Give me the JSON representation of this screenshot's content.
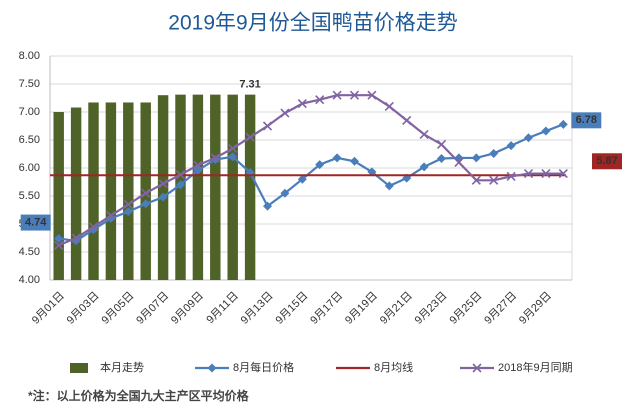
{
  "chart_data": {
    "type": "combo",
    "title": "2019年9月份全国鸭苗价格走势",
    "footnote": "*注：以上价格为全国九大主产区平均价格",
    "categories": [
      "9月01日",
      null,
      "9月03日",
      null,
      "9月05日",
      null,
      "9月07日",
      null,
      "9月09日",
      null,
      "9月11日",
      null,
      "9月13日",
      null,
      "9月15日",
      null,
      "9月17日",
      null,
      "9月19日",
      null,
      "9月21日",
      null,
      "9月23日",
      null,
      "9月25日",
      null,
      "9月27日",
      null,
      "9月29日",
      null
    ],
    "ylim": [
      4,
      8
    ],
    "yticks": [
      {
        "value": 4,
        "label": "4.00"
      },
      {
        "value": 4.5,
        "label": "4.50"
      },
      {
        "value": 5,
        "label": "5.00"
      },
      {
        "value": 5.5,
        "label": "5.50"
      },
      {
        "value": 6,
        "label": "6.00"
      },
      {
        "value": 6.5,
        "label": "6.50"
      },
      {
        "value": 7,
        "label": "7.00"
      },
      {
        "value": 7.5,
        "label": "7.50"
      },
      {
        "value": 8,
        "label": "8.00"
      }
    ],
    "grid": true,
    "legend": "bottom",
    "series": [
      {
        "name": "本月走势",
        "type": "bar",
        "color": "#4f6228",
        "values": [
          7.0,
          7.08,
          7.17,
          7.17,
          7.17,
          7.17,
          7.3,
          7.31,
          7.31,
          7.31,
          7.31,
          7.31,
          null,
          null,
          null,
          null,
          null,
          null,
          null,
          null,
          null,
          null,
          null,
          null,
          null,
          null,
          null,
          null,
          null,
          null
        ],
        "value_labels": [
          null,
          null,
          null,
          null,
          null,
          null,
          null,
          null,
          null,
          null,
          null,
          "7.31",
          null,
          null,
          null,
          null,
          null,
          null,
          null,
          null,
          null,
          null,
          null,
          null,
          null,
          null,
          null,
          null,
          null,
          null
        ]
      },
      {
        "name": "8月每日价格",
        "type": "line",
        "marker": "diamond",
        "color": "#4a7ebb",
        "values": [
          4.74,
          4.7,
          4.9,
          5.1,
          5.22,
          5.36,
          5.48,
          5.7,
          5.96,
          6.15,
          6.2,
          5.92,
          5.32,
          5.55,
          5.8,
          6.06,
          6.18,
          6.12,
          5.93,
          5.68,
          5.82,
          6.02,
          6.17,
          6.18,
          6.18,
          6.26,
          6.4,
          6.54,
          6.66,
          6.78
        ],
        "value_labels": [
          "4.74",
          null,
          null,
          null,
          null,
          null,
          null,
          null,
          null,
          null,
          null,
          null,
          null,
          null,
          null,
          null,
          null,
          null,
          null,
          null,
          null,
          null,
          null,
          null,
          null,
          null,
          null,
          null,
          null,
          "6.78"
        ]
      },
      {
        "name": "8月均线",
        "type": "hline",
        "color": "#a02525",
        "value": 5.87,
        "value_label": "5.87"
      },
      {
        "name": "2018年9月同期",
        "type": "line",
        "marker": "x",
        "color": "#8064a2",
        "values": [
          4.62,
          4.75,
          4.95,
          5.15,
          5.35,
          5.55,
          5.72,
          5.88,
          6.05,
          6.18,
          6.35,
          6.55,
          6.75,
          6.98,
          7.15,
          7.22,
          7.3,
          7.3,
          7.3,
          7.1,
          6.85,
          6.6,
          6.42,
          6.1,
          5.78,
          5.78,
          5.85,
          5.9,
          5.9,
          5.9
        ]
      }
    ]
  }
}
